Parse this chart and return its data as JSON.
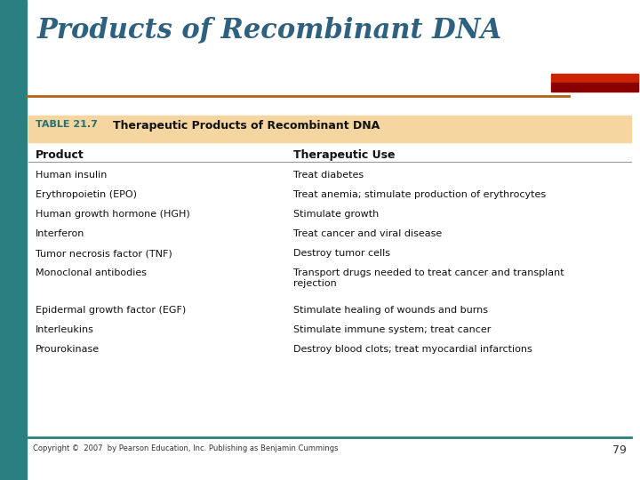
{
  "title": "Products of Recombinant DNA",
  "title_color": "#2E6080",
  "title_fontsize": 22,
  "table_label": "TABLE 21.7",
  "table_title": "Therapeutic Products of Recombinant DNA",
  "table_header_bg": "#F5D5A0",
  "col1_header": "Product",
  "col2_header": "Therapeutic Use",
  "rows_col1": [
    "Human insulin",
    "Erythropoietin (EPO)",
    "Human growth hormone (HGH)",
    "Interferon",
    "Tumor necrosis factor (TNF)",
    "Monoclonal antibodies",
    "",
    "Epidermal growth factor (EGF)",
    "Interleukins",
    "Prourokinase"
  ],
  "rows_col2": [
    "Treat diabetes",
    "Treat anemia; stimulate production of erythrocytes",
    "Stimulate growth",
    "Treat cancer and viral disease",
    "Destroy tumor cells",
    "Transport drugs needed to treat cancer and transplant\nrejection",
    "",
    "Stimulate healing of wounds and burns",
    "Stimulate immune system; treat cancer",
    "Destroy blood clots; treat myocardial infarctions"
  ],
  "left_bar_color": "#2A8080",
  "orange_line_color": "#B86010",
  "red_bar_color1": "#CC2200",
  "red_bar_color2": "#880000",
  "copyright_text": "Copyright ©  2007  by Pearson Education, Inc. Publishing as Benjamin Cummings",
  "page_number": "79",
  "bg_color": "#FFFFFF",
  "table_border_color": "#2A8080"
}
